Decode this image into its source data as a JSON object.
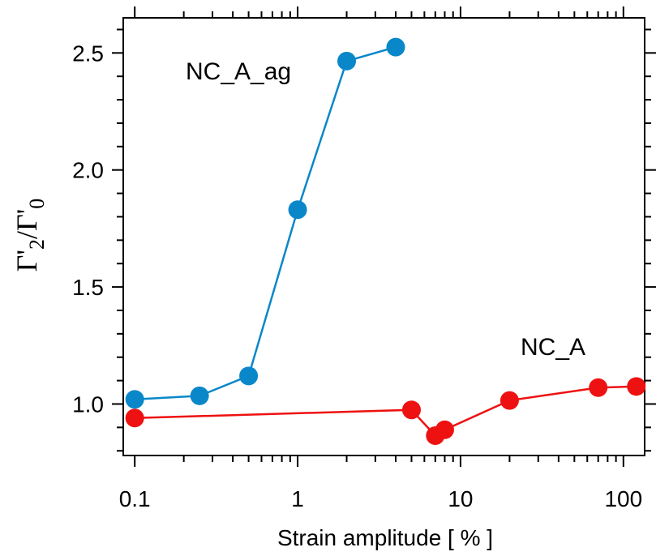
{
  "chart_data": {
    "type": "scatter",
    "xlabel": "Strain amplitude [ % ]",
    "ylabel_symbol": "Γ'",
    "ylabel_sub_num": "2",
    "ylabel_slash": "/",
    "ylabel_sub_den": "0",
    "xscale": "log",
    "xlim": [
      0.085,
      135
    ],
    "ylim": [
      0.78,
      2.65
    ],
    "xticks": [
      0.1,
      1,
      10,
      100
    ],
    "xtick_labels": [
      "0.1",
      "1",
      "10",
      "100"
    ],
    "yticks": [
      1.0,
      1.5,
      2.0,
      2.5
    ],
    "ytick_labels": [
      "1.0",
      "1.5",
      "2.0",
      "2.5"
    ],
    "grid": false,
    "series": [
      {
        "name": "NC_A_ag",
        "color": "#0a87c9",
        "x": [
          0.1,
          0.25,
          0.5,
          1,
          2,
          4
        ],
        "y": [
          1.02,
          1.035,
          1.12,
          1.83,
          2.465,
          2.525
        ]
      },
      {
        "name": "NC_A",
        "color": "#ee1111",
        "x": [
          0.1,
          5,
          7,
          8,
          20,
          70,
          120
        ],
        "y": [
          0.94,
          0.975,
          0.865,
          0.89,
          1.015,
          1.07,
          1.075
        ]
      }
    ]
  }
}
